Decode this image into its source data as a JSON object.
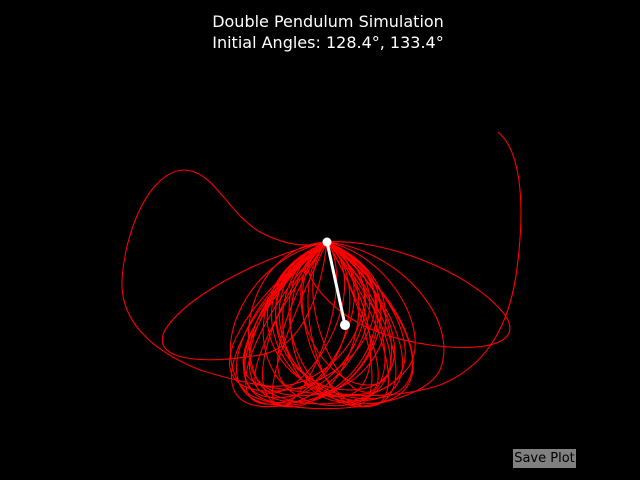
{
  "title": {
    "line1": "Double Pendulum Simulation",
    "line2": "Initial Angles: 128.4°, 133.4°"
  },
  "colors": {
    "background": "#000000",
    "trace": "#ff0000",
    "rod": "#ffffff",
    "button_bg": "#808080"
  },
  "save_button": {
    "label": "Save Plot"
  }
}
